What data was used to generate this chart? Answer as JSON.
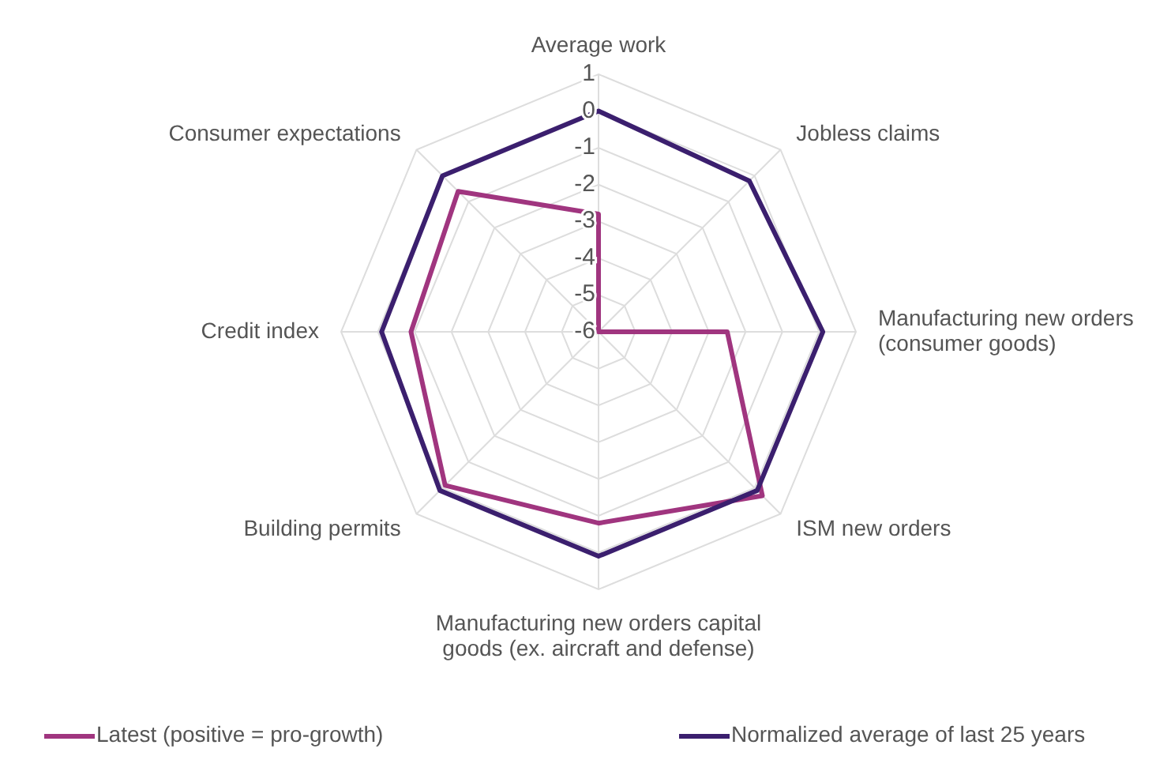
{
  "chart_data": {
    "type": "radar",
    "categories": [
      "Average work",
      "Jobless claims",
      "Manufacturing new orders\n(consumer goods)",
      "ISM new orders",
      "Manufacturing new orders capital\ngoods (ex. aircraft and defense)",
      "Building permits",
      "Credit index",
      "Consumer expectations"
    ],
    "ylim": [
      -6,
      1
    ],
    "yticks": [
      -6,
      -5,
      -4,
      -3,
      -2,
      -1,
      0,
      1
    ],
    "grid": true,
    "legend": "bottom",
    "line_style": "solid",
    "marker": "none",
    "series": [
      {
        "name": "Latest (positive = pro-growth)",
        "color": "#a0357f",
        "values": [
          -2.8,
          -6,
          -2.5,
          0.3,
          -0.8,
          -0.1,
          -0.9,
          -0.6
        ]
      },
      {
        "name": "Normalized average of last 25 years",
        "color": "#3b1f6e",
        "values": [
          0,
          -0.2,
          0.1,
          0.1,
          0.1,
          0.1,
          -0.1,
          0
        ]
      }
    ]
  }
}
